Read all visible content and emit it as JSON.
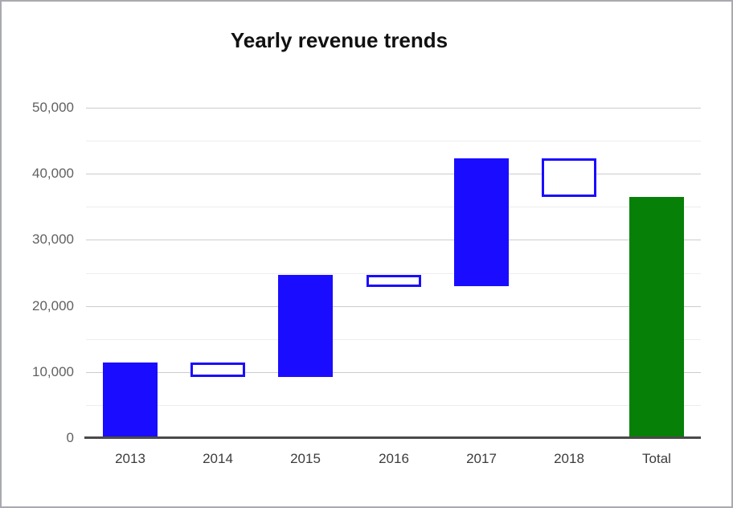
{
  "chart_data": {
    "type": "waterfall-bar",
    "title": "Yearly revenue trends",
    "categories": [
      "2013",
      "2014",
      "2015",
      "2016",
      "2017",
      "2018",
      "Total"
    ],
    "series": [
      {
        "name": "2013",
        "start": 0,
        "end": 11400,
        "delta": 11400,
        "kind": "increase"
      },
      {
        "name": "2014",
        "start": 11400,
        "end": 9200,
        "delta": -2200,
        "kind": "decrease"
      },
      {
        "name": "2015",
        "start": 9200,
        "end": 24700,
        "delta": 15500,
        "kind": "increase"
      },
      {
        "name": "2016",
        "start": 24700,
        "end": 22900,
        "delta": -1800,
        "kind": "decrease"
      },
      {
        "name": "2017",
        "start": 22900,
        "end": 42300,
        "delta": 19400,
        "kind": "increase"
      },
      {
        "name": "2018",
        "start": 42300,
        "end": 36500,
        "delta": -5800,
        "kind": "decrease"
      },
      {
        "name": "Total",
        "start": 0,
        "end": 36500,
        "delta": 36500,
        "kind": "total"
      }
    ],
    "y_axis": {
      "min": 0,
      "max": 50000,
      "major_step": 10000,
      "minor_step": 5000,
      "tick_labels": [
        "0",
        "10,000",
        "20,000",
        "30,000",
        "40,000",
        "50,000"
      ]
    },
    "x_axis": {
      "tick_labels": [
        "2013",
        "2014",
        "2015",
        "2016",
        "2017",
        "2018",
        "Total"
      ]
    },
    "legend": "none",
    "grid": "on",
    "styles": {
      "increase_fill": "#1a0dff",
      "decrease_fill": "#ffffff",
      "decrease_border": "#1a0dff",
      "total_fill": "#078007",
      "major_gridline": "#cccccc",
      "minor_gridline": "#ededed",
      "baseline": "#4a4a4a",
      "y_label_color": "#616161",
      "x_label_color": "#3c3c3c",
      "title_color": "#111111",
      "frame_border": "#a9a9b0",
      "background": "#ffffff"
    }
  }
}
